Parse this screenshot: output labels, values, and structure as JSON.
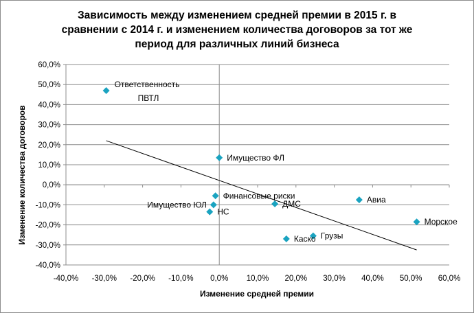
{
  "chart_data": {
    "type": "scatter",
    "title_lines": [
      "Зависимость между изменением средней премии в 2015 г. в",
      "сравнении с 2014 г. и изменением количества договоров за тот же",
      "период для различных линий бизнеса"
    ],
    "xlabel": "Изменение средней премии",
    "ylabel": "Изменение количества договоров",
    "xlim": [
      -40,
      60
    ],
    "ylim": [
      -40,
      60
    ],
    "x_ticks": [
      -40,
      -30,
      -20,
      -10,
      0,
      10,
      20,
      30,
      40,
      50,
      60
    ],
    "y_ticks": [
      -40,
      -30,
      -20,
      -10,
      0,
      10,
      20,
      30,
      40,
      50,
      60
    ],
    "x_tick_labels": [
      "-40,0%",
      "-30,0%",
      "-20,0%",
      "-10,0%",
      "0,0%",
      "10,0%",
      "20,0%",
      "30,0%",
      "40,0%",
      "50,0%",
      "60,0%"
    ],
    "y_tick_labels": [
      "-40,0%",
      "-30,0%",
      "-20,0%",
      "-10,0%",
      "0,0%",
      "10,0%",
      "20,0%",
      "30,0%",
      "40,0%",
      "50,0%",
      "60,0%"
    ],
    "grid": "horizontal",
    "marker_color": "#1aa3c0",
    "trendline_color": "#000000",
    "points": [
      {
        "name": "Ответственность",
        "x": -29.5,
        "y": 47.0,
        "label_side": "right-top"
      },
      {
        "name": "ПВТЛ",
        "x": -29.5,
        "y": 47.0,
        "label_side": "right-bottom"
      },
      {
        "name": "Имущество ФЛ",
        "x": 0.0,
        "y": 13.5,
        "label_side": "right"
      },
      {
        "name": "Финансовые риски",
        "x": -1.0,
        "y": -5.5,
        "label_side": "right"
      },
      {
        "name": "Имущество ЮЛ",
        "x": -1.5,
        "y": -10.0,
        "label_side": "left"
      },
      {
        "name": "НС",
        "x": -2.5,
        "y": -13.5,
        "label_side": "right"
      },
      {
        "name": "ДМС",
        "x": 14.5,
        "y": -9.5,
        "label_side": "right"
      },
      {
        "name": "Авиа",
        "x": 36.5,
        "y": -7.5,
        "label_side": "right"
      },
      {
        "name": "Морское",
        "x": 51.5,
        "y": -18.5,
        "label_side": "right"
      },
      {
        "name": "Каско",
        "x": 17.5,
        "y": -27.0,
        "label_side": "right"
      },
      {
        "name": "Грузы",
        "x": 24.5,
        "y": -25.5,
        "label_side": "right"
      }
    ],
    "trendline": {
      "x_start": -29.5,
      "y_start": 22.0,
      "x_end": 51.5,
      "y_end": -32.5
    }
  }
}
